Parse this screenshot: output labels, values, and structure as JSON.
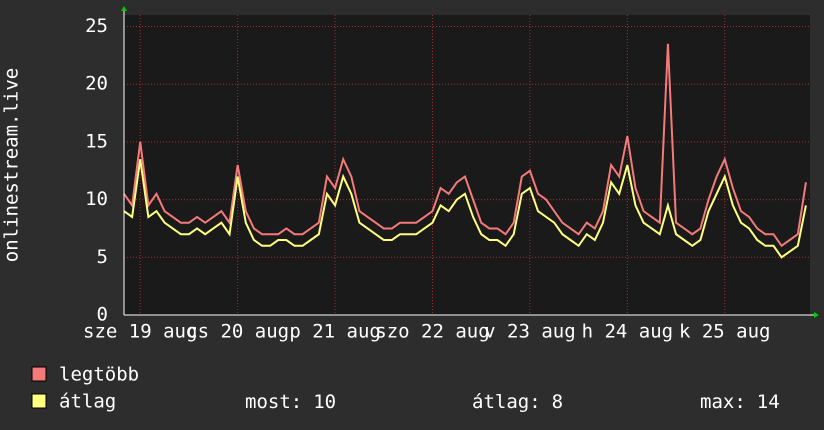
{
  "chart_data": {
    "type": "line",
    "y_label": "onlinestream.live",
    "x": [
      8,
      10,
      12,
      14,
      16,
      18,
      20,
      22,
      24,
      26,
      28,
      30,
      32,
      34,
      36,
      38,
      40,
      42,
      44,
      46,
      48,
      50,
      52,
      54,
      56,
      58,
      60,
      62,
      64,
      66,
      68,
      70,
      72,
      74,
      76,
      78,
      80,
      82,
      84,
      86,
      88,
      90,
      92,
      94,
      96,
      98,
      100,
      102,
      104,
      106,
      108,
      110,
      112,
      114,
      116,
      118,
      120,
      122,
      124,
      126,
      128,
      130,
      132,
      134,
      136,
      138,
      140,
      142,
      144,
      146,
      148,
      150,
      152,
      154,
      156,
      158,
      160,
      162,
      164,
      166,
      168,
      170,
      172,
      174,
      176
    ],
    "series": [
      {
        "name": "legtöbb",
        "color": "#f47a7a",
        "values": [
          10.5,
          9.5,
          15,
          9.5,
          10.5,
          9,
          8.5,
          8,
          8,
          8.5,
          8,
          8.5,
          9,
          8,
          13,
          9,
          7.5,
          7,
          7,
          7,
          7.5,
          7,
          7,
          7.5,
          8,
          12,
          11,
          13.5,
          12,
          9,
          8.5,
          8,
          7.5,
          7.5,
          8,
          8,
          8,
          8.5,
          9,
          11,
          10.5,
          11.5,
          12,
          10,
          8,
          7.5,
          7.5,
          7,
          8,
          12,
          12.5,
          10.5,
          10,
          9,
          8,
          7.5,
          7,
          8,
          7.5,
          9,
          13,
          12,
          15.5,
          11,
          9,
          8.5,
          8,
          23.5,
          8,
          7.5,
          7,
          7.5,
          10,
          12,
          13.5,
          11,
          9,
          8.5,
          7.5,
          7,
          7,
          6,
          6.5,
          7,
          11.5
        ]
      },
      {
        "name": "átlag",
        "color": "#ffff80",
        "values": [
          9,
          8.5,
          13.5,
          8.5,
          9,
          8,
          7.5,
          7,
          7,
          7.5,
          7,
          7.5,
          8,
          7,
          12,
          8,
          6.5,
          6,
          6,
          6.5,
          6.5,
          6,
          6,
          6.5,
          7,
          10.5,
          9.5,
          12,
          10.5,
          8,
          7.5,
          7,
          6.5,
          6.5,
          7,
          7,
          7,
          7.5,
          8,
          9.5,
          9,
          10,
          10.5,
          8.5,
          7,
          6.5,
          6.5,
          6,
          7,
          10.5,
          11,
          9,
          8.5,
          8,
          7,
          6.5,
          6,
          7,
          6.5,
          8,
          11.5,
          10.5,
          13,
          9.5,
          8,
          7.5,
          7,
          9.5,
          7,
          6.5,
          6,
          6.5,
          9,
          10.5,
          12,
          9.5,
          8,
          7.5,
          6.5,
          6,
          6,
          5,
          5.5,
          6,
          9.5
        ]
      }
    ],
    "xlim": [
      8,
      177
    ],
    "xticks": [
      {
        "value": 12,
        "label": "sze 19 aug"
      },
      {
        "value": 36,
        "label": "cs 20 aug"
      },
      {
        "value": 60,
        "label": "p 21 aug"
      },
      {
        "value": 84,
        "label": "szo 22 aug"
      },
      {
        "value": 108,
        "label": "v 23 aug"
      },
      {
        "value": 132,
        "label": "h 24 aug"
      },
      {
        "value": 156,
        "label": "k 25 aug"
      }
    ],
    "ylim": [
      0,
      26
    ],
    "yticks": [
      0,
      5,
      10,
      15,
      20,
      25
    ],
    "grid": true,
    "stats": [
      {
        "label": "most:",
        "value": 10
      },
      {
        "label": "átlag:",
        "value": 8
      },
      {
        "label": "max:",
        "value": 14
      }
    ]
  }
}
